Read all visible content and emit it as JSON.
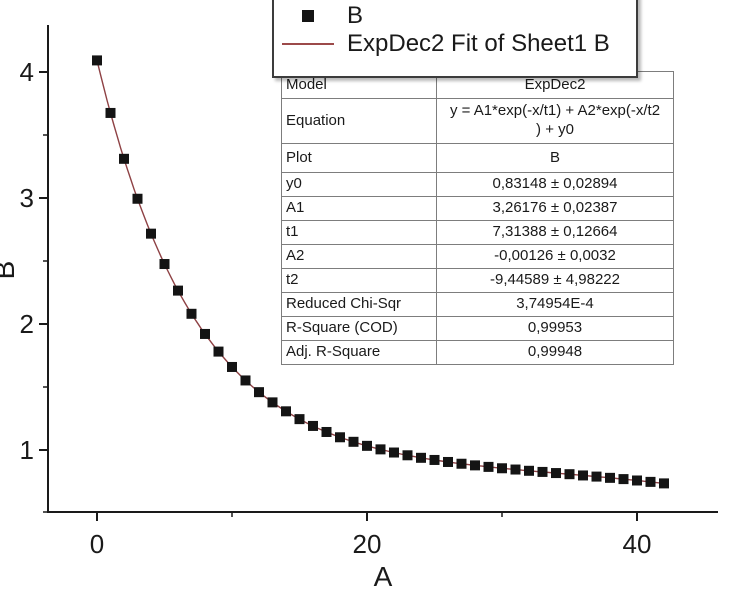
{
  "figure": {
    "legend": {
      "entries": [
        {
          "label": "B",
          "swatch": "black-square-marker"
        },
        {
          "label": "ExpDec2 Fit of Sheet1 B",
          "swatch": "red-fit-line"
        }
      ]
    },
    "colors": {
      "marker": "#141414",
      "fit_line": "#8e4144",
      "axis": "#1a1a1a",
      "background": "#ffffff"
    }
  },
  "table": {
    "rows": [
      {
        "label": "Model",
        "value": "ExpDec2"
      },
      {
        "label": "Equation",
        "value": "y = A1*exp(-x/t1) + A2*exp(-x/t2\n) + y0"
      },
      {
        "label": "Plot",
        "value": "B"
      },
      {
        "label": "y0",
        "value": "0,83148 ± 0,02894"
      },
      {
        "label": "A1",
        "value": "3,26176 ± 0,02387"
      },
      {
        "label": "t1",
        "value": "7,31388 ± 0,12664"
      },
      {
        "label": "A2",
        "value": "-0,00126 ± 0,0032"
      },
      {
        "label": "t2",
        "value": "-9,44589 ± 4,98222"
      },
      {
        "label": "Reduced Chi-Sqr",
        "value": "3,74954E-4"
      },
      {
        "label": "R-Square (COD)",
        "value": "0,99953"
      },
      {
        "label": "Adj. R-Square",
        "value": "0,99948"
      }
    ]
  },
  "chart_data": {
    "type": "scatter",
    "title": "",
    "xlabel": "A",
    "ylabel": "B",
    "xlim": [
      -3.6,
      46.0
    ],
    "ylim": [
      0.5,
      4.37
    ],
    "grid": false,
    "legend_position": "top-center",
    "x_major_ticks": [
      0,
      20,
      40
    ],
    "x_minor_ticks": [
      10,
      30
    ],
    "y_major_ticks": [
      1,
      2,
      3,
      4
    ],
    "y_minor_ticks": [
      0.5,
      1.5,
      2.5,
      3.5
    ],
    "x": [
      0,
      1,
      2,
      3,
      4,
      5,
      6,
      7,
      8,
      9,
      10,
      11,
      12,
      13,
      14,
      15,
      16,
      17,
      18,
      19,
      20,
      21,
      22,
      23,
      24,
      25,
      26,
      27,
      28,
      29,
      30,
      31,
      32,
      33,
      34,
      35,
      36,
      37,
      38,
      39,
      40,
      41,
      42
    ],
    "series": [
      {
        "name": "B",
        "type": "scatter",
        "marker": "square",
        "color": "#141414",
        "values": [
          4.092,
          3.675,
          3.311,
          2.994,
          2.717,
          2.476,
          2.265,
          2.081,
          1.921,
          1.781,
          1.659,
          1.552,
          1.459,
          1.378,
          1.307,
          1.245,
          1.191,
          1.143,
          1.101,
          1.065,
          1.033,
          1.005,
          0.98,
          0.958,
          0.938,
          0.921,
          0.905,
          0.891,
          0.878,
          0.866,
          0.855,
          0.845,
          0.835,
          0.826,
          0.817,
          0.808,
          0.798,
          0.789,
          0.779,
          0.769,
          0.758,
          0.747,
          0.735
        ]
      },
      {
        "name": "ExpDec2 Fit of Sheet1 B",
        "type": "line",
        "color": "#8e4144",
        "fit": {
          "model": "ExpDec2",
          "y0": 0.83148,
          "A1": 3.26176,
          "t1": 7.31388,
          "A2": -0.00126,
          "t2": -9.44589
        }
      }
    ]
  }
}
